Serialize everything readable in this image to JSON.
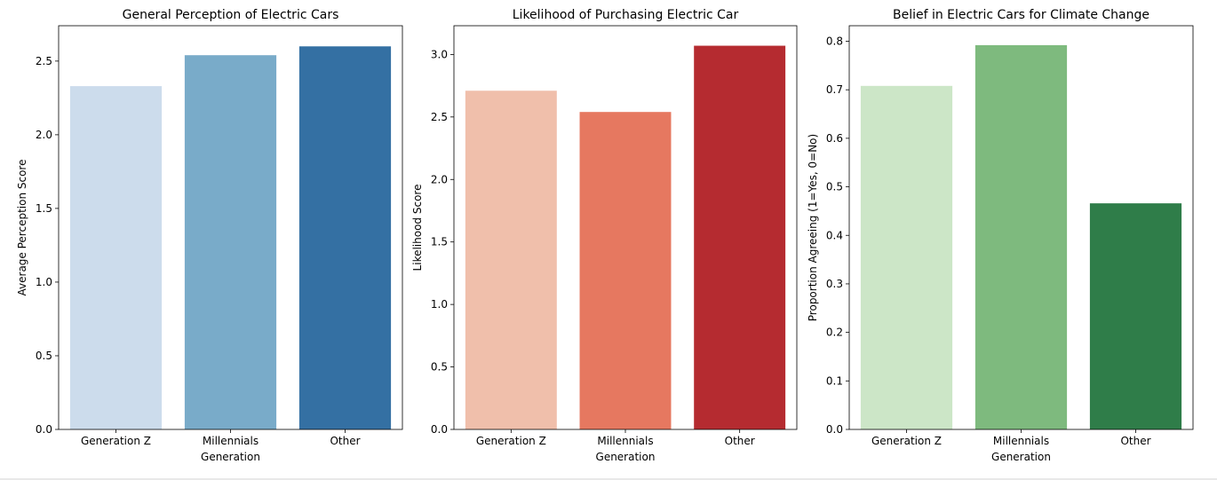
{
  "chart_data": [
    {
      "type": "bar",
      "title": "General Perception of Electric Cars",
      "xlabel": "Generation",
      "ylabel": "Average Perception Score",
      "categories": [
        "Generation Z",
        "Millennials",
        "Other"
      ],
      "values": [
        2.33,
        2.54,
        2.6
      ],
      "colors": [
        "#ccdcec",
        "#79abc9",
        "#3470a3"
      ],
      "ylim": [
        0,
        2.74
      ],
      "yticks": [
        0.0,
        0.5,
        1.0,
        1.5,
        2.0,
        2.5
      ],
      "ytick_labels": [
        "0.0",
        "0.5",
        "1.0",
        "1.5",
        "2.0",
        "2.5"
      ],
      "grid": false
    },
    {
      "type": "bar",
      "title": "Likelihood of Purchasing Electric Car",
      "xlabel": "Generation",
      "ylabel": "Likelihood Score",
      "categories": [
        "Generation Z",
        "Millennials",
        "Other"
      ],
      "values": [
        2.71,
        2.54,
        3.07
      ],
      "colors": [
        "#f0bfab",
        "#e67860",
        "#b52b30"
      ],
      "ylim": [
        0,
        3.23
      ],
      "yticks": [
        0.0,
        0.5,
        1.0,
        1.5,
        2.0,
        2.5,
        3.0
      ],
      "ytick_labels": [
        "0.0",
        "0.5",
        "1.0",
        "1.5",
        "2.0",
        "2.5",
        "3.0"
      ],
      "grid": false
    },
    {
      "type": "bar",
      "title": "Belief in Electric Cars for Climate Change",
      "xlabel": "Generation",
      "ylabel": "Proportion Agreeing (1=Yes, 0=No)",
      "categories": [
        "Generation Z",
        "Millennials",
        "Other"
      ],
      "values": [
        0.708,
        0.792,
        0.466
      ],
      "colors": [
        "#cce6c7",
        "#7eba7e",
        "#2f7d49"
      ],
      "ylim": [
        0,
        0.832
      ],
      "yticks": [
        0.0,
        0.1,
        0.2,
        0.3,
        0.4,
        0.5,
        0.6,
        0.7,
        0.8
      ],
      "ytick_labels": [
        "0.0",
        "0.1",
        "0.2",
        "0.3",
        "0.4",
        "0.5",
        "0.6",
        "0.7",
        "0.8"
      ],
      "grid": false
    }
  ]
}
